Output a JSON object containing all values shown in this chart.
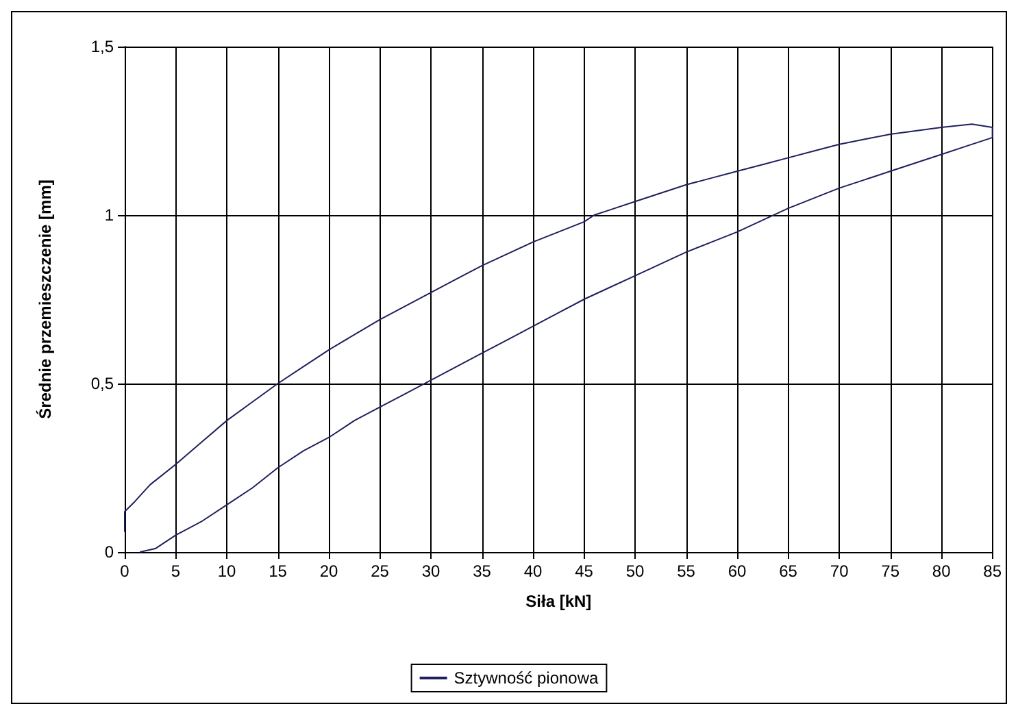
{
  "chart_data": {
    "type": "line",
    "xlabel": "Siła [kN]",
    "ylabel": "Średnie przemieszczenie [mm]",
    "series": [
      {
        "name": "Sztywność pionowa",
        "color": "#1f1f5f",
        "x": [
          1.5,
          3,
          5,
          7.5,
          10,
          12.5,
          15,
          17.5,
          20,
          22.5,
          25,
          27.5,
          30,
          32.5,
          35,
          37.5,
          40,
          42.5,
          45,
          47.5,
          50,
          52.5,
          55,
          57.5,
          60,
          62.5,
          65,
          67.5,
          70,
          72.5,
          75,
          77.5,
          80,
          82.5,
          85,
          85,
          83,
          80,
          77.5,
          75,
          72.5,
          70,
          67.5,
          65,
          62.5,
          60,
          57.5,
          55,
          52.5,
          50,
          47.5,
          46,
          45,
          42.5,
          40,
          37.5,
          35,
          32.5,
          30,
          27.5,
          25,
          22.5,
          20,
          17.5,
          15,
          12.5,
          10,
          7.5,
          5,
          2.5,
          1,
          0,
          0
        ],
        "values": [
          0,
          0.01,
          0.05,
          0.09,
          0.14,
          0.19,
          0.25,
          0.3,
          0.34,
          0.39,
          0.43,
          0.47,
          0.51,
          0.55,
          0.59,
          0.63,
          0.67,
          0.71,
          0.75,
          0.785,
          0.82,
          0.855,
          0.89,
          0.92,
          0.95,
          0.985,
          1.02,
          1.05,
          1.08,
          1.105,
          1.13,
          1.155,
          1.18,
          1.205,
          1.23,
          1.26,
          1.27,
          1.26,
          1.25,
          1.24,
          1.225,
          1.21,
          1.19,
          1.17,
          1.15,
          1.13,
          1.11,
          1.09,
          1.065,
          1.04,
          1.015,
          1.0,
          0.98,
          0.95,
          0.92,
          0.885,
          0.85,
          0.81,
          0.77,
          0.73,
          0.69,
          0.645,
          0.6,
          0.55,
          0.5,
          0.445,
          0.39,
          0.325,
          0.26,
          0.2,
          0.15,
          0.12,
          0.06
        ]
      }
    ],
    "xlim": [
      0,
      85
    ],
    "xticks": [
      0,
      5,
      10,
      15,
      20,
      25,
      30,
      35,
      40,
      45,
      50,
      55,
      60,
      65,
      70,
      75,
      80,
      85
    ],
    "ylim": [
      0,
      1.5
    ],
    "yticks": [
      0,
      {
        "value": 0.5,
        "label": "0,5"
      },
      1,
      {
        "value": 1.5,
        "label": "1,5"
      }
    ],
    "grid": true,
    "legend": "bottom",
    "marker": "none",
    "line_style": "solid"
  }
}
